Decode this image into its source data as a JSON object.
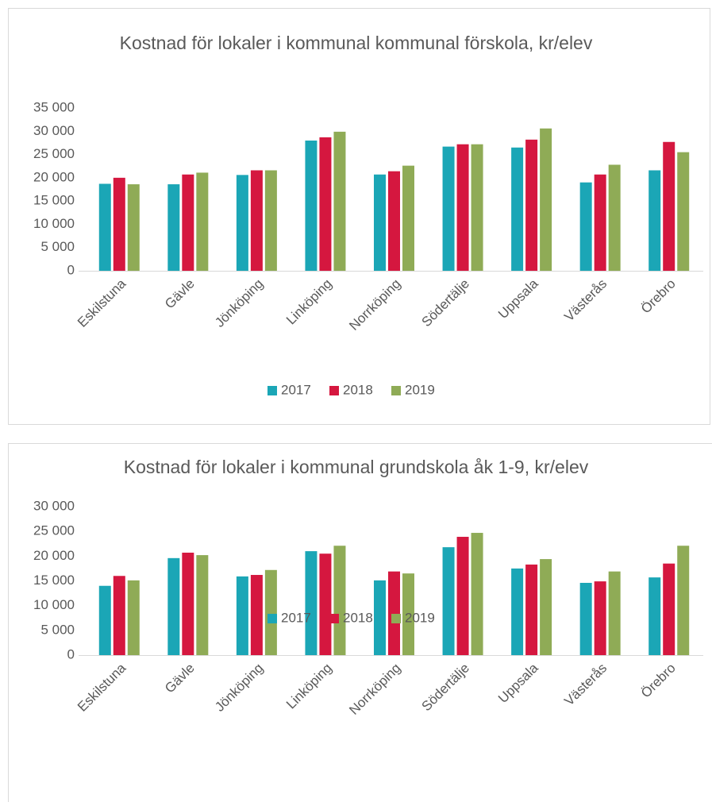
{
  "chart_data": [
    {
      "type": "bar",
      "title": "Kostnad för lokaler i kommunal kommunal förskola, kr/elev",
      "categories": [
        "Eskilstuna",
        "Gävle",
        "Jönköping",
        "Linköping",
        "Norrköping",
        "Södertälje",
        "Uppsala",
        "Västerås",
        "Örebro"
      ],
      "series": [
        {
          "name": "2017",
          "color": "#1ba6b6",
          "values": [
            18700,
            18600,
            20600,
            28000,
            20700,
            26700,
            26500,
            19000,
            21600
          ]
        },
        {
          "name": "2018",
          "color": "#d5173f",
          "values": [
            20000,
            20700,
            21600,
            28700,
            21400,
            27200,
            28200,
            20700,
            27700
          ]
        },
        {
          "name": "2019",
          "color": "#8fab56",
          "values": [
            18600,
            21100,
            21600,
            29900,
            22600,
            27200,
            30600,
            22800,
            25500
          ]
        }
      ],
      "ylim": [
        0,
        35000
      ],
      "yticks": [
        0,
        {
          "value": 5000,
          "label": "5 000"
        },
        {
          "value": 10000,
          "label": "10 000"
        },
        {
          "value": 15000,
          "label": "15 000"
        },
        {
          "value": 20000,
          "label": "20 000"
        },
        {
          "value": 25000,
          "label": "25 000"
        },
        {
          "value": 30000,
          "label": "30 000"
        },
        {
          "value": 35000,
          "label": "35 000"
        }
      ],
      "grid": false,
      "legend": "bottom"
    },
    {
      "type": "bar",
      "title": "Kostnad för lokaler i kommunal grundskola åk 1-9, kr/elev",
      "categories": [
        "Eskilstuna",
        "Gävle",
        "Jönköping",
        "Linköping",
        "Norrköping",
        "Södertälje",
        "Uppsala",
        "Västerås",
        "Örebro"
      ],
      "series": [
        {
          "name": "2017",
          "color": "#1ba6b6",
          "values": [
            14000,
            19600,
            15900,
            21000,
            15100,
            21800,
            17500,
            14600,
            15700
          ]
        },
        {
          "name": "2018",
          "color": "#d5173f",
          "values": [
            16000,
            20700,
            16200,
            20500,
            16900,
            23900,
            18300,
            14900,
            18500
          ]
        },
        {
          "name": "2019",
          "color": "#8fab56",
          "values": [
            15100,
            20200,
            17200,
            22100,
            16500,
            24700,
            19400,
            16900,
            22100
          ]
        }
      ],
      "ylim": [
        0,
        30000
      ],
      "yticks": [
        0,
        {
          "value": 5000,
          "label": "5 000"
        },
        {
          "value": 10000,
          "label": "10 000"
        },
        {
          "value": 15000,
          "label": "15 000"
        },
        {
          "value": 20000,
          "label": "20 000"
        },
        {
          "value": 25000,
          "label": "25 000"
        },
        {
          "value": 30000,
          "label": "30 000"
        }
      ],
      "grid": false,
      "legend": "bottom"
    }
  ]
}
